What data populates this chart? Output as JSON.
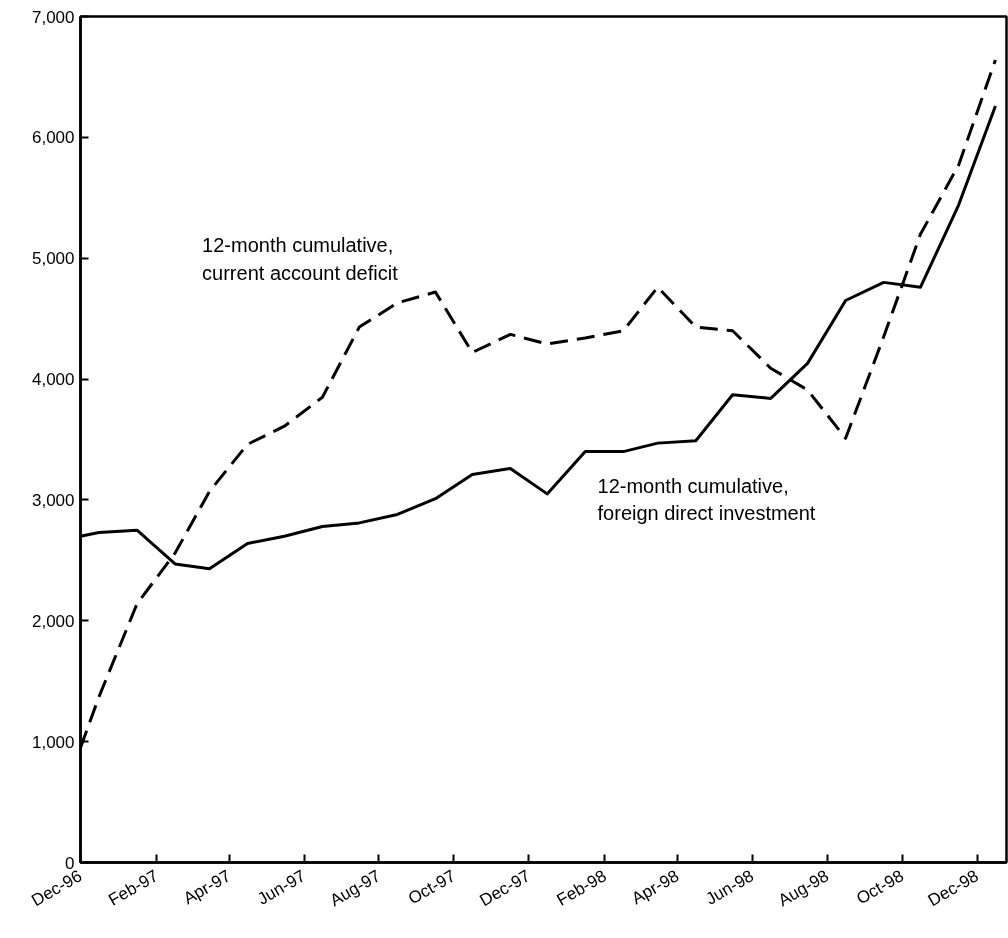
{
  "chart_data": {
    "type": "line",
    "x": [
      "1996-12-01",
      "1996-12-16",
      "1997-01-16",
      "1997-02-16",
      "1997-03-16",
      "1997-04-16",
      "1997-05-16",
      "1997-06-16",
      "1997-07-16",
      "1997-08-16",
      "1997-09-16",
      "1997-10-16",
      "1997-11-16",
      "1997-12-16",
      "1998-01-16",
      "1998-02-16",
      "1998-03-16",
      "1998-04-16",
      "1998-05-16",
      "1998-06-16",
      "1998-07-16",
      "1998-08-16",
      "1998-09-16",
      "1998-10-16",
      "1998-11-16",
      "1998-12-16"
    ],
    "series": [
      {
        "name": "12-month cumulative,\ncurrent account deficit",
        "color": "#000000",
        "line_style": "dashed",
        "values": [
          950,
          1370,
          2140,
          2560,
          3070,
          3460,
          3610,
          3850,
          4430,
          4630,
          4720,
          4220,
          4370,
          4290,
          4340,
          4400,
          4760,
          4430,
          4400,
          4090,
          3910,
          3510,
          4350,
          5200,
          5770,
          6640
        ]
      },
      {
        "name": "12-month cumulative,\nforeign direct investment",
        "color": "#000000",
        "line_style": "solid",
        "values": [
          2700,
          2730,
          2750,
          2470,
          2430,
          2640,
          2700,
          2780,
          2810,
          2880,
          3010,
          3210,
          3260,
          3050,
          3400,
          3400,
          3470,
          3490,
          3870,
          3840,
          4130,
          4650,
          4800,
          4760,
          5440,
          6260
        ]
      }
    ],
    "xlim": [
      "1996-12-01",
      "1998-12-25"
    ],
    "xticks": [
      {
        "value": "1996-12-01",
        "label": "Dec-96"
      },
      {
        "value": "1997-02-01",
        "label": "Feb-97"
      },
      {
        "value": "1997-04-01",
        "label": "Apr-97"
      },
      {
        "value": "1997-06-01",
        "label": "Jun-97"
      },
      {
        "value": "1997-08-01",
        "label": "Aug-97"
      },
      {
        "value": "1997-10-01",
        "label": "Oct-97"
      },
      {
        "value": "1997-12-01",
        "label": "Dec-97"
      },
      {
        "value": "1998-02-01",
        "label": "Feb-98"
      },
      {
        "value": "1998-04-01",
        "label": "Apr-98"
      },
      {
        "value": "1998-06-01",
        "label": "Jun-98"
      },
      {
        "value": "1998-08-01",
        "label": "Aug-98"
      },
      {
        "value": "1998-10-01",
        "label": "Oct-98"
      },
      {
        "value": "1998-12-01",
        "label": "Dec-98"
      }
    ],
    "ylim": [
      0,
      7000
    ],
    "yticks": [
      {
        "value": 0,
        "label": "0"
      },
      {
        "value": 1000,
        "label": "1,000"
      },
      {
        "value": 2000,
        "label": "2,000"
      },
      {
        "value": 3000,
        "label": "3,000"
      },
      {
        "value": 4000,
        "label": "4,000"
      },
      {
        "value": 5000,
        "label": "5,000"
      },
      {
        "value": 6000,
        "label": "6,000"
      },
      {
        "value": 7000,
        "label": "7,000"
      }
    ],
    "grid": false,
    "legend": false,
    "marker": "none"
  }
}
